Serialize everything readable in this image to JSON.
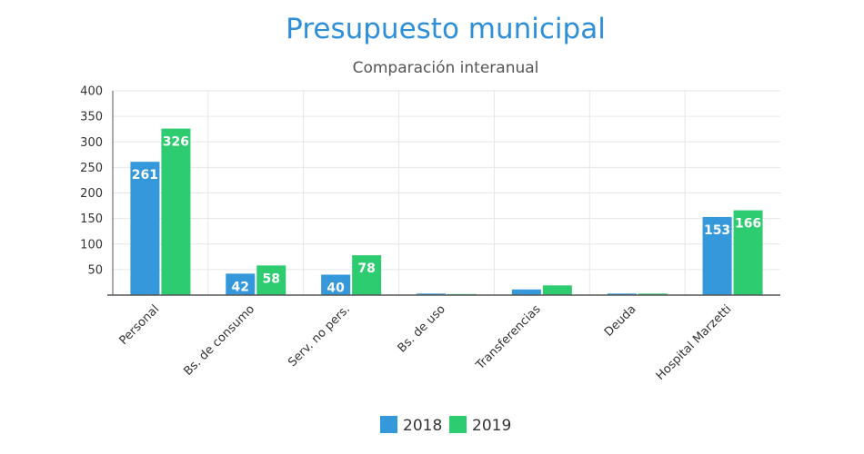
{
  "colors": {
    "title": "#2e8fd8",
    "series_2018": "#3498db",
    "series_2019": "#2ecc71",
    "grid": "#e6e6e6",
    "axis": "#555555"
  },
  "chart_data": {
    "type": "bar",
    "title": "Presupuesto municipal",
    "subtitle": "Comparación interanual",
    "xlabel": "",
    "ylabel": "",
    "categories": [
      "Personal",
      "Bs. de consumo",
      "Serv. no pers.",
      "Bs. de uso",
      "Transferencias",
      "Deuda",
      "Hospital Marzetti"
    ],
    "series": [
      {
        "name": "2018",
        "values": [
          261,
          42,
          40,
          3,
          11,
          3,
          153
        ],
        "labels": [
          "261",
          "42",
          "40",
          "",
          "",
          "",
          "153"
        ]
      },
      {
        "name": "2019",
        "values": [
          326,
          58,
          78,
          2,
          19,
          3,
          166
        ],
        "labels": [
          "326",
          "58",
          "78",
          "",
          "",
          "",
          "166"
        ]
      }
    ],
    "ylim": [
      0,
      400
    ],
    "yticks": [
      "50",
      "100",
      "150",
      "200",
      "250",
      "300",
      "350",
      "400"
    ],
    "ytick_values": [
      50,
      100,
      150,
      200,
      250,
      300,
      350,
      400
    ],
    "grid": true,
    "legend_position": "bottom-center"
  }
}
